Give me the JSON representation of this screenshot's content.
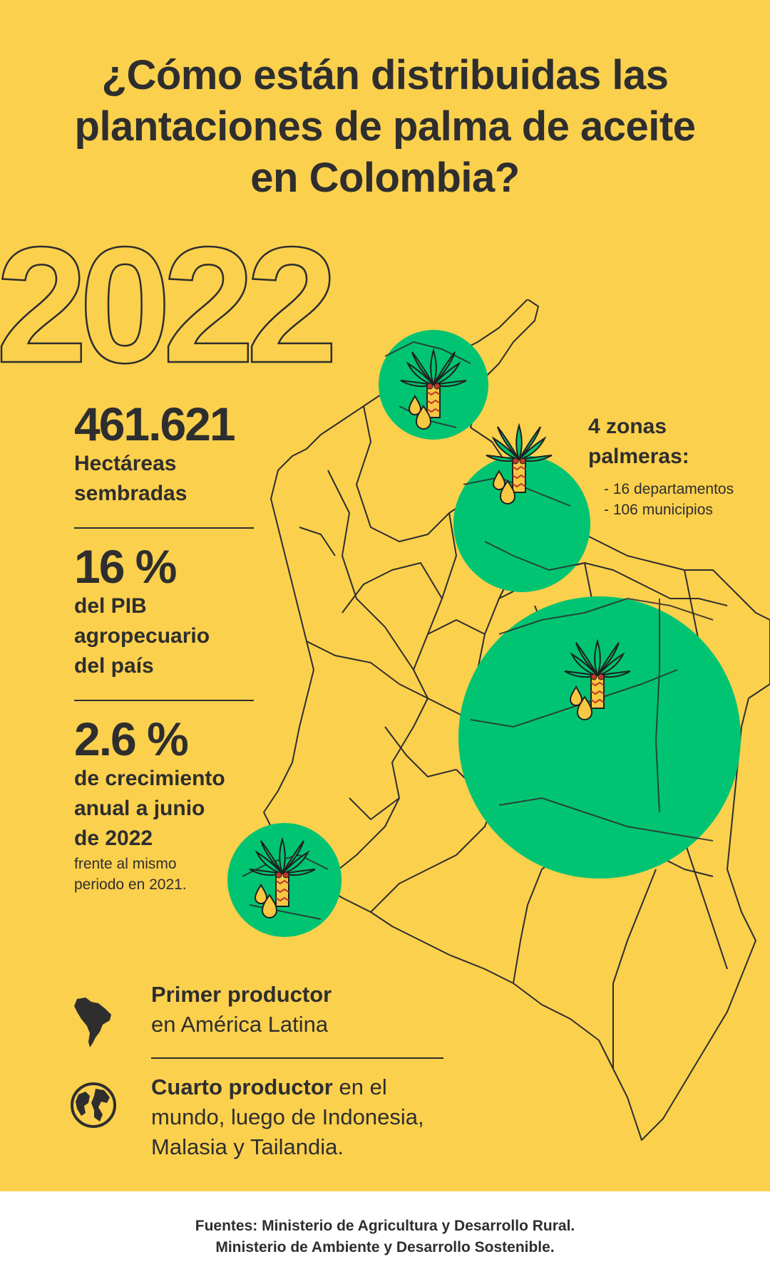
{
  "title": {
    "line1": "¿Cómo están distribuidas las",
    "line2": "plantaciones de palma de aceite",
    "line3": "en Colombia?"
  },
  "year": "2022",
  "stats": [
    {
      "value": "461.621",
      "label_lines": [
        "Hectáreas",
        "sembradas"
      ]
    },
    {
      "value": "16 %",
      "label_lines": [
        "del PIB",
        "agropecuario",
        "del país"
      ]
    },
    {
      "value": "2.6 %",
      "label_lines": [
        "de crecimiento",
        "anual a junio",
        "de 2022"
      ],
      "note_lines": [
        "frente al mismo",
        "periodo en 2021."
      ]
    }
  ],
  "zones": {
    "heading_lines": [
      "4 zonas",
      "palmeras:"
    ],
    "items": [
      "- 16 departamentos",
      "- 106 municipios"
    ]
  },
  "producer": {
    "first_bold": "Primer productor",
    "first_rest": "en América Latina",
    "fourth_bold": "Cuarto productor",
    "fourth_rest_1": " en el",
    "fourth_rest_2": "mundo, luego de Indonesia,",
    "fourth_rest_3": "Malasia y Tailandia."
  },
  "footer": {
    "line1": "Fuentes: Ministerio de Agricultura y Desarrollo Rural.",
    "line2": "Ministerio de Ambiente y Desarrollo Sostenible."
  },
  "colors": {
    "background": "#fbd04d",
    "zone_circle": "#00c472",
    "text": "#2e2e2e",
    "footer_bg": "#ffffff"
  },
  "icons": [
    "palm-tree-icon",
    "oil-drop-icon",
    "south-america-icon",
    "globe-icon"
  ]
}
